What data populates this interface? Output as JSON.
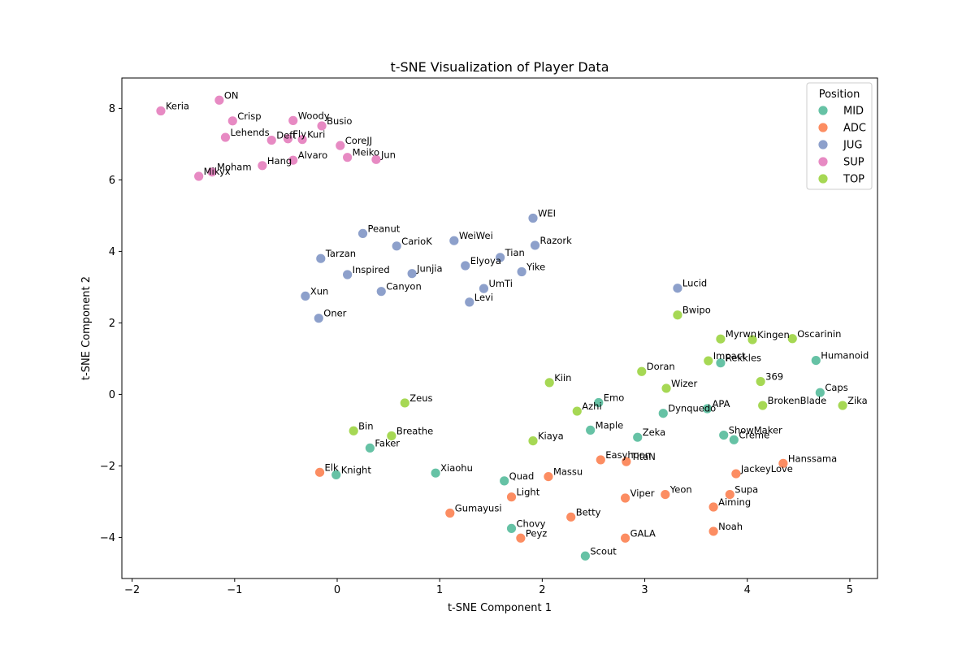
{
  "chart_data": {
    "type": "scatter",
    "title": "t-SNE Visualization of Player Data",
    "xlabel": "t-SNE Component 1",
    "ylabel": "t-SNE Component 2",
    "xlim": [
      -2.1,
      5.27
    ],
    "ylim": [
      -5.15,
      8.85
    ],
    "xticks": [
      -2,
      -1,
      0,
      1,
      2,
      3,
      4,
      5
    ],
    "yticks": [
      -4,
      -2,
      0,
      2,
      4,
      6,
      8
    ],
    "grid": false,
    "legend": {
      "title": "Position",
      "placement": "top-right"
    },
    "series": [
      {
        "name": "MID",
        "color": "#66c2a5",
        "points": [
          {
            "label": "Humanoid",
            "x": 4.67,
            "y": 0.95
          },
          {
            "label": "Caps",
            "x": 4.71,
            "y": 0.05
          },
          {
            "label": "Rekkles",
            "x": 3.74,
            "y": 0.88
          },
          {
            "label": "APA",
            "x": 3.61,
            "y": -0.4
          },
          {
            "label": "Dynquedo",
            "x": 3.18,
            "y": -0.53
          },
          {
            "label": "ShowMaker",
            "x": 3.77,
            "y": -1.14
          },
          {
            "label": "Creme",
            "x": 3.87,
            "y": -1.27
          },
          {
            "label": "Zeka",
            "x": 2.93,
            "y": -1.2
          },
          {
            "label": "Emo",
            "x": 2.55,
            "y": -0.23
          },
          {
            "label": "Maple",
            "x": 2.47,
            "y": -1.0
          },
          {
            "label": "Faker",
            "x": 0.32,
            "y": -1.5
          },
          {
            "label": "Knight",
            "x": -0.01,
            "y": -2.25
          },
          {
            "label": "Xiaohu",
            "x": 0.96,
            "y": -2.2
          },
          {
            "label": "Quad",
            "x": 1.63,
            "y": -2.42
          },
          {
            "label": "Chovy",
            "x": 1.7,
            "y": -3.75
          },
          {
            "label": "Scout",
            "x": 2.42,
            "y": -4.52
          }
        ]
      },
      {
        "name": "ADC",
        "color": "#fc8d62",
        "points": [
          {
            "label": "Elk",
            "x": -0.17,
            "y": -2.18
          },
          {
            "label": "Gumayusi",
            "x": 1.1,
            "y": -3.32
          },
          {
            "label": "Light",
            "x": 1.7,
            "y": -2.87
          },
          {
            "label": "Peyz",
            "x": 1.79,
            "y": -4.02
          },
          {
            "label": "Massu",
            "x": 2.06,
            "y": -2.3
          },
          {
            "label": "Betty",
            "x": 2.28,
            "y": -3.43
          },
          {
            "label": "Easyhoon",
            "x": 2.57,
            "y": -1.83
          },
          {
            "label": "TitaN",
            "x": 2.82,
            "y": -1.88
          },
          {
            "label": "Viper",
            "x": 2.81,
            "y": -2.9
          },
          {
            "label": "GALA",
            "x": 2.81,
            "y": -4.02
          },
          {
            "label": "Yeon",
            "x": 3.2,
            "y": -2.8
          },
          {
            "label": "Supa",
            "x": 3.83,
            "y": -2.8
          },
          {
            "label": "Aiming",
            "x": 3.67,
            "y": -3.15
          },
          {
            "label": "Noah",
            "x": 3.67,
            "y": -3.83
          },
          {
            "label": "JackeyLove",
            "x": 3.89,
            "y": -2.22
          },
          {
            "label": "Hanssama",
            "x": 4.35,
            "y": -1.93
          }
        ]
      },
      {
        "name": "JUG",
        "color": "#8da0cb",
        "points": [
          {
            "label": "Peanut",
            "x": 0.25,
            "y": 4.5
          },
          {
            "label": "CarioK",
            "x": 0.58,
            "y": 4.15
          },
          {
            "label": "WeiWei",
            "x": 1.14,
            "y": 4.3
          },
          {
            "label": "WEI",
            "x": 1.91,
            "y": 4.93
          },
          {
            "label": "Razork",
            "x": 1.93,
            "y": 4.17
          },
          {
            "label": "Tian",
            "x": 1.59,
            "y": 3.83
          },
          {
            "label": "Elyoya",
            "x": 1.25,
            "y": 3.6
          },
          {
            "label": "Yike",
            "x": 1.8,
            "y": 3.43
          },
          {
            "label": "Tarzan",
            "x": -0.16,
            "y": 3.8
          },
          {
            "label": "Inspired",
            "x": 0.1,
            "y": 3.35
          },
          {
            "label": "Junjia",
            "x": 0.73,
            "y": 3.38
          },
          {
            "label": "Canyon",
            "x": 0.43,
            "y": 2.88
          },
          {
            "label": "UmTi",
            "x": 1.43,
            "y": 2.96
          },
          {
            "label": "Levi",
            "x": 1.29,
            "y": 2.58
          },
          {
            "label": "Xun",
            "x": -0.31,
            "y": 2.75
          },
          {
            "label": "Oner",
            "x": -0.18,
            "y": 2.13
          },
          {
            "label": "Lucid",
            "x": 3.32,
            "y": 2.97
          }
        ]
      },
      {
        "name": "SUP",
        "color": "#e78ac3",
        "points": [
          {
            "label": "Keria",
            "x": -1.72,
            "y": 7.93
          },
          {
            "label": "ON",
            "x": -1.15,
            "y": 8.23
          },
          {
            "label": "Crisp",
            "x": -1.02,
            "y": 7.65
          },
          {
            "label": "Woody",
            "x": -0.43,
            "y": 7.66
          },
          {
            "label": "Busio",
            "x": -0.15,
            "y": 7.51
          },
          {
            "label": "Lehends",
            "x": -1.09,
            "y": 7.19
          },
          {
            "label": "Deft",
            "x": -0.64,
            "y": 7.11
          },
          {
            "label": "Fly",
            "x": -0.48,
            "y": 7.15
          },
          {
            "label": "Kuri",
            "x": -0.34,
            "y": 7.13
          },
          {
            "label": "CoreJJ",
            "x": 0.03,
            "y": 6.96
          },
          {
            "label": "Meiko",
            "x": 0.1,
            "y": 6.63
          },
          {
            "label": "Jun",
            "x": 0.38,
            "y": 6.57
          },
          {
            "label": "Alvaro",
            "x": -0.43,
            "y": 6.55
          },
          {
            "label": "Hang",
            "x": -0.73,
            "y": 6.4
          },
          {
            "label": "Moham",
            "x": -1.22,
            "y": 6.22
          },
          {
            "label": "Mikyx",
            "x": -1.35,
            "y": 6.1
          }
        ]
      },
      {
        "name": "TOP",
        "color": "#a6d854",
        "points": [
          {
            "label": "Bwipo",
            "x": 3.32,
            "y": 2.22
          },
          {
            "label": "Myrwn",
            "x": 3.74,
            "y": 1.55
          },
          {
            "label": "Kingen",
            "x": 4.05,
            "y": 1.53
          },
          {
            "label": "Oscarinin",
            "x": 4.44,
            "y": 1.56
          },
          {
            "label": "Impact",
            "x": 3.62,
            "y": 0.94
          },
          {
            "label": "Doran",
            "x": 2.97,
            "y": 0.64
          },
          {
            "label": "369",
            "x": 4.13,
            "y": 0.36
          },
          {
            "label": "Wizer",
            "x": 3.21,
            "y": 0.17
          },
          {
            "label": "Kiin",
            "x": 2.07,
            "y": 0.33
          },
          {
            "label": "BrokenBlade",
            "x": 4.15,
            "y": -0.31
          },
          {
            "label": "Zika",
            "x": 4.93,
            "y": -0.31
          },
          {
            "label": "Azhi",
            "x": 2.34,
            "y": -0.47
          },
          {
            "label": "Zeus",
            "x": 0.66,
            "y": -0.24
          },
          {
            "label": "Bin",
            "x": 0.16,
            "y": -1.02
          },
          {
            "label": "Breathe",
            "x": 0.53,
            "y": -1.16
          },
          {
            "label": "Kiaya",
            "x": 1.91,
            "y": -1.3
          }
        ]
      }
    ]
  }
}
